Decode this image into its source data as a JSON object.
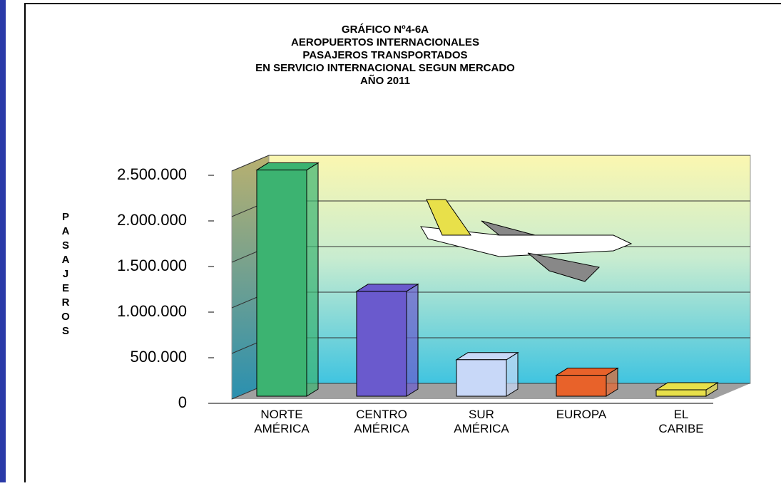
{
  "chart_data": {
    "type": "bar3d",
    "title": [
      "GRÁFICO Nº4-6A",
      "AEROPUERTOS INTERNACIONALES",
      "PASAJEROS TRANSPORTADOS",
      "EN SERVICIO INTERNACIONAL SEGUN MERCADO",
      "AÑO 2011"
    ],
    "y_label": "PASAJEROS",
    "categories": [
      "NORTE AMÉRICA",
      "CENTRO AMÉRICA",
      "SUR AMÉRICA",
      "EUROPA",
      "EL CARIBE"
    ],
    "values": [
      2480000,
      1150000,
      400000,
      230000,
      70000
    ],
    "colors": [
      "#3cb371",
      "#6a5acd",
      "#c8d8f8",
      "#e8622a",
      "#e8e04a"
    ],
    "ylim": [
      0,
      2500000
    ],
    "yticks": [
      0,
      {
        "value": 500000,
        "label": "500.000"
      },
      {
        "value": 1000000,
        "label": "1.000.000"
      },
      {
        "value": 1500000,
        "label": "1.500.000"
      },
      {
        "value": 2000000,
        "label": "2.000.000"
      },
      {
        "value": 2500000,
        "label": "2.500.000"
      }
    ],
    "grid": true
  }
}
